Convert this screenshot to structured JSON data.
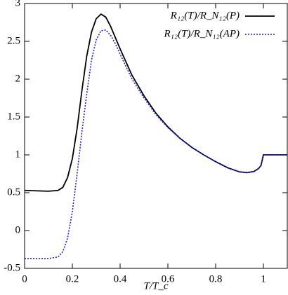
{
  "chart_data": {
    "type": "line",
    "xlabel": "T/T_c",
    "x": [
      0,
      0.1,
      0.14,
      0.16,
      0.18,
      0.2,
      0.22,
      0.24,
      0.26,
      0.28,
      0.3,
      0.32,
      0.34,
      0.36,
      0.38,
      0.4,
      0.45,
      0.5,
      0.55,
      0.6,
      0.65,
      0.7,
      0.75,
      0.8,
      0.85,
      0.9,
      0.93,
      0.96,
      0.98,
      0.99,
      1.0,
      1.05,
      1.1
    ],
    "series": [
      {
        "name": "R₁₂(T)/R_N₁₂(P)",
        "color": "#000000",
        "dash": false,
        "values": [
          0.53,
          0.52,
          0.53,
          0.57,
          0.7,
          0.95,
          1.35,
          1.85,
          2.3,
          2.62,
          2.8,
          2.86,
          2.82,
          2.7,
          2.55,
          2.4,
          2.05,
          1.78,
          1.55,
          1.37,
          1.22,
          1.1,
          1.0,
          0.91,
          0.83,
          0.775,
          0.765,
          0.78,
          0.82,
          0.86,
          1.0,
          1.0,
          1.0
        ]
      },
      {
        "name": "R₁₂(T)/R_N₁₂(AP)",
        "color": "#1a1aff",
        "dash": true,
        "values": [
          -0.37,
          -0.37,
          -0.35,
          -0.28,
          -0.1,
          0.25,
          0.75,
          1.3,
          1.8,
          2.25,
          2.52,
          2.64,
          2.65,
          2.58,
          2.47,
          2.33,
          2.0,
          1.75,
          1.53,
          1.36,
          1.22,
          1.1,
          1.0,
          0.91,
          0.83,
          0.775,
          0.765,
          0.78,
          0.82,
          0.86,
          1.0,
          1.0,
          1.0
        ]
      }
    ],
    "xlim": [
      0,
      1.1
    ],
    "xticks": [
      0,
      0.2,
      0.4,
      0.6,
      0.8,
      1
    ],
    "ylim": [
      -0.5,
      3
    ],
    "yticks": [
      -0.5,
      0,
      0.5,
      1,
      1.5,
      2,
      2.5,
      3
    ],
    "legend": "top-right"
  }
}
